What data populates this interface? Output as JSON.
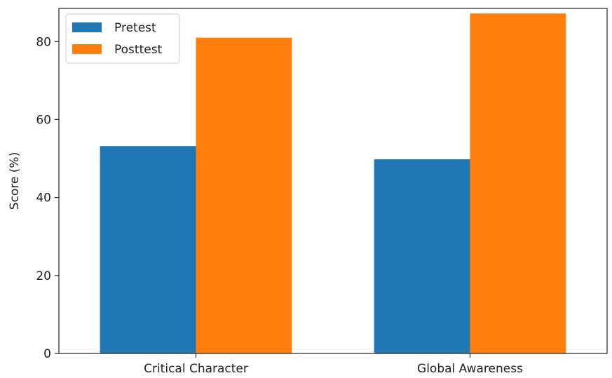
{
  "chart_data": {
    "type": "bar",
    "title": "",
    "xlabel": "",
    "ylabel": "Score (%)",
    "categories": [
      "Critical Character",
      "Global Awareness"
    ],
    "series": [
      {
        "name": "Pretest",
        "values": [
          53.2,
          49.8
        ],
        "color": "#1f77b4"
      },
      {
        "name": "Posttest",
        "values": [
          81.0,
          87.2
        ],
        "color": "#ff7f0e"
      }
    ],
    "ylim": [
      0,
      88.5
    ],
    "yticks": [
      0,
      20,
      40,
      60,
      80
    ],
    "grid": false,
    "legend_position": "top-left"
  }
}
